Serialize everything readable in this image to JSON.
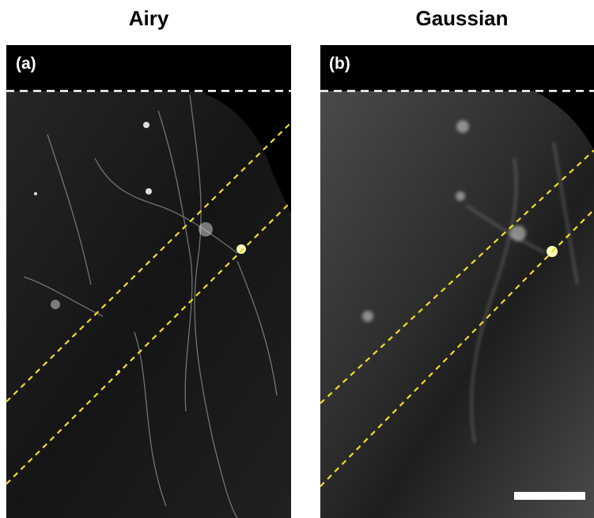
{
  "panels": [
    {
      "title": "Airy",
      "label": "(a)"
    },
    {
      "title": "Gaussian",
      "label": "(b)"
    }
  ]
}
